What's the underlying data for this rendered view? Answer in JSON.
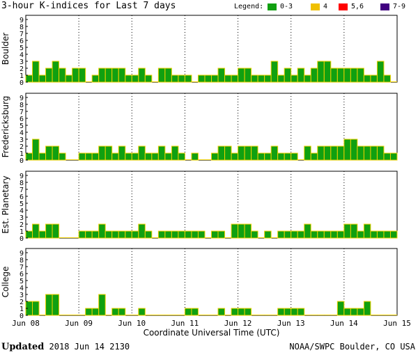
{
  "title": "3-hour K-indices for Last 7 days",
  "legend": {
    "label": "Legend:",
    "items": [
      {
        "label": "0-3",
        "color": "#10a010"
      },
      {
        "label": "4",
        "color": "#f0c000"
      },
      {
        "label": "5,6",
        "color": "#ff0000"
      },
      {
        "label": "7-9",
        "color": "#400080"
      }
    ]
  },
  "footer": {
    "updated_label": "Updated",
    "updated_value": "2018 Jun 14 2130",
    "source": "NOAA/SWPC Boulder, CO USA"
  },
  "chart_data": {
    "type": "bar",
    "xlabel": "Coordinate Universal Time (UTC)",
    "x_ticks": [
      "Jun 08",
      "Jun 09",
      "Jun 10",
      "Jun 11",
      "Jun 12",
      "Jun 13",
      "Jun 14",
      "Jun 15"
    ],
    "y_ticks": [
      "0",
      "1",
      "2",
      "3",
      "4",
      "5",
      "6",
      "7",
      "8",
      "9"
    ],
    "ylim": [
      0,
      9
    ],
    "interval": "3-hour",
    "grid": true,
    "panels": [
      {
        "name": "Boulder",
        "values": [
          1,
          3,
          1,
          2,
          3,
          2,
          1,
          2,
          2,
          0,
          1,
          2,
          2,
          2,
          2,
          1,
          1,
          2,
          1,
          0,
          2,
          2,
          1,
          1,
          1,
          0,
          1,
          1,
          1,
          2,
          1,
          1,
          2,
          2,
          1,
          1,
          1,
          3,
          1,
          2,
          1,
          2,
          1,
          2,
          3,
          3,
          2,
          2,
          2,
          2,
          2,
          1,
          1,
          3,
          1,
          0
        ]
      },
      {
        "name": "Fredericksburg",
        "values": [
          1,
          3,
          1,
          2,
          2,
          1,
          0,
          0,
          1,
          1,
          1,
          2,
          2,
          1,
          2,
          1,
          1,
          2,
          1,
          1,
          2,
          1,
          2,
          1,
          0,
          1,
          0,
          0,
          1,
          2,
          2,
          1,
          2,
          2,
          2,
          1,
          1,
          2,
          1,
          1,
          1,
          0,
          2,
          1,
          2,
          2,
          2,
          2,
          3,
          3,
          2,
          2,
          2,
          2,
          1,
          1,
          0
        ]
      },
      {
        "name": "Est. Planetary",
        "values": [
          1,
          2,
          1,
          2,
          2,
          0,
          0,
          0,
          1,
          1,
          1,
          2,
          1,
          1,
          1,
          1,
          1,
          2,
          1,
          0,
          1,
          1,
          1,
          1,
          1,
          1,
          1,
          0,
          1,
          1,
          0,
          2,
          2,
          2,
          1,
          0,
          1,
          0,
          1,
          1,
          1,
          1,
          2,
          1,
          1,
          1,
          1,
          1,
          2,
          2,
          1,
          2,
          1,
          1,
          1,
          1,
          1
        ]
      },
      {
        "name": "College",
        "values": [
          2,
          2,
          0,
          3,
          3,
          0,
          0,
          0,
          0,
          1,
          1,
          3,
          0,
          1,
          1,
          0,
          0,
          1,
          0,
          0,
          0,
          0,
          0,
          0,
          1,
          1,
          0,
          0,
          0,
          1,
          0,
          1,
          1,
          1,
          0,
          0,
          0,
          0,
          1,
          1,
          1,
          1,
          0,
          0,
          0,
          0,
          0,
          2,
          1,
          1,
          1,
          2,
          0,
          0,
          0,
          0
        ]
      }
    ]
  }
}
